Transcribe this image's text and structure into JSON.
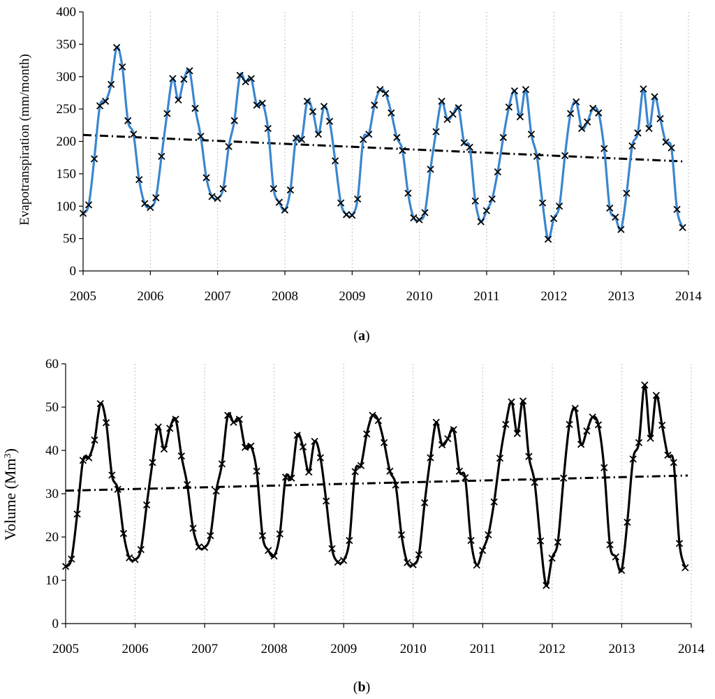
{
  "colors": {
    "series_a": "#3b86cf",
    "series_b": "#000000",
    "trend": "#000000",
    "marker": "#000000",
    "grid": "#bfbfbf"
  },
  "chart_data": [
    {
      "type": "line",
      "panel_label_prefix": "(",
      "panel_label_letter": "a",
      "panel_label_suffix": ")",
      "ylabel": "Evapotranspiration (mm/month)",
      "xlabel": "",
      "xlim": [
        2005,
        2014
      ],
      "ylim": [
        0,
        400
      ],
      "x_ticks": [
        "2005",
        "2006",
        "2007",
        "2008",
        "2009",
        "2010",
        "2011",
        "2012",
        "2013",
        "2014"
      ],
      "y_ticks": [
        "0",
        "50",
        "100",
        "150",
        "200",
        "250",
        "300",
        "350",
        "400"
      ],
      "x_tick_values": [
        2005,
        2006,
        2007,
        2008,
        2009,
        2010,
        2011,
        2012,
        2013,
        2014
      ],
      "y_tick_values": [
        0,
        50,
        100,
        150,
        200,
        250,
        300,
        350,
        400
      ],
      "grid": "vertical-dotted",
      "series": [
        {
          "name": "Evapotranspiration",
          "marker": "x",
          "start_year": 2005.0,
          "step": 0.0833,
          "values": [
            89,
            102,
            173,
            255,
            262,
            288,
            345,
            315,
            232,
            211,
            141,
            104,
            98,
            113,
            177,
            243,
            297,
            264,
            296,
            309,
            251,
            208,
            144,
            115,
            112,
            127,
            192,
            232,
            302,
            292,
            297,
            256,
            259,
            220,
            127,
            106,
            94,
            125,
            205,
            203,
            262,
            246,
            211,
            254,
            231,
            170,
            105,
            87,
            86,
            111,
            203,
            211,
            256,
            280,
            274,
            244,
            206,
            186,
            120,
            82,
            79,
            90,
            157,
            215,
            262,
            234,
            242,
            252,
            198,
            191,
            108,
            76,
            93,
            111,
            153,
            206,
            253,
            278,
            238,
            280,
            211,
            177,
            105,
            49,
            81,
            100,
            178,
            243,
            261,
            220,
            230,
            251,
            244,
            189,
            97,
            83,
            64,
            120,
            193,
            213,
            281,
            220,
            269,
            235,
            199,
            190,
            95,
            67
          ]
        }
      ],
      "trendline": {
        "type": "linear",
        "x": [
          2005.0,
          2013.95
        ],
        "y": [
          210,
          169
        ]
      }
    },
    {
      "type": "line",
      "panel_label_prefix": "(",
      "panel_label_letter": "b",
      "panel_label_suffix": ")",
      "ylabel": "Volume (Mm",
      "ylabel_sup": "3",
      "ylabel_end": ")",
      "xlabel": "",
      "xlim": [
        2005,
        2014
      ],
      "ylim": [
        0,
        60
      ],
      "x_ticks": [
        "2005",
        "2006",
        "2007",
        "2008",
        "2009",
        "2010",
        "2011",
        "2012",
        "2013",
        "2014"
      ],
      "y_ticks": [
        "0",
        "10",
        "20",
        "30",
        "40",
        "50",
        "60"
      ],
      "x_tick_values": [
        2005,
        2006,
        2007,
        2008,
        2009,
        2010,
        2011,
        2012,
        2013,
        2014
      ],
      "y_tick_values": [
        0,
        10,
        20,
        30,
        40,
        50,
        60
      ],
      "grid": "vertical-dotted",
      "series": [
        {
          "name": "Volume",
          "marker": "x",
          "start_year": 2005.0,
          "step": 0.0833,
          "values": [
            13.2,
            14.9,
            25.3,
            37.7,
            38.3,
            42.4,
            50.8,
            46.4,
            34.3,
            31.0,
            20.8,
            15.2,
            14.8,
            17.1,
            27.4,
            37.2,
            45.4,
            40.3,
            45.1,
            47.2,
            38.7,
            32.1,
            22.0,
            17.7,
            17.6,
            20.3,
            30.6,
            36.9,
            48.1,
            46.5,
            47.2,
            40.7,
            41.0,
            35.2,
            20.3,
            16.9,
            15.6,
            20.7,
            33.8,
            33.6,
            43.5,
            40.8,
            35.0,
            42.1,
            38.3,
            28.3,
            17.3,
            14.2,
            14.6,
            19.2,
            35.1,
            36.5,
            43.8,
            48.1,
            46.9,
            41.8,
            35.2,
            32.0,
            20.5,
            14.1,
            13.6,
            15.9,
            27.9,
            38.3,
            46.5,
            41.3,
            42.7,
            44.8,
            35.2,
            33.7,
            19.2,
            13.5,
            16.9,
            20.5,
            28.1,
            38.2,
            46.0,
            51.2,
            43.9,
            51.4,
            38.6,
            32.6,
            19.1,
            8.8,
            15.1,
            18.8,
            33.6,
            46.0,
            49.7,
            41.4,
            44.5,
            47.7,
            45.9,
            36.0,
            18.2,
            15.4,
            12.3,
            23.4,
            38.0,
            41.8,
            55.1,
            42.8,
            52.7,
            45.8,
            38.9,
            37.2,
            18.5,
            12.9
          ]
        }
      ],
      "trendline": {
        "type": "linear",
        "x": [
          2005.0,
          2013.95
        ],
        "y": [
          30.7,
          34.2
        ]
      }
    }
  ]
}
